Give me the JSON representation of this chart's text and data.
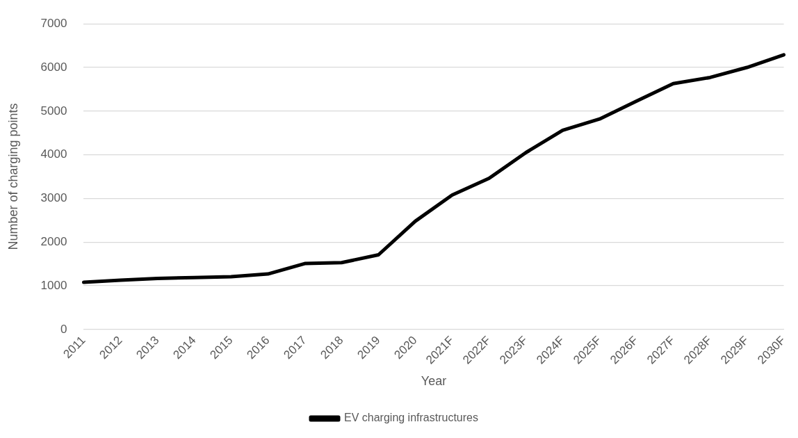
{
  "chart_data": {
    "type": "line",
    "xlabel": "Year",
    "ylabel": "Number of charging points",
    "categories": [
      "2011",
      "2012",
      "2013",
      "2014",
      "2015",
      "2016",
      "2017",
      "2018",
      "2019",
      "2020",
      "2021F",
      "2022F",
      "2023F",
      "2024F",
      "2025F",
      "2026F",
      "2027F",
      "2028F",
      "2029F",
      "2030F"
    ],
    "series": [
      {
        "name": "EV charging infrastructures",
        "color": "#000000",
        "values": [
          1080,
          1130,
          1170,
          1190,
          1210,
          1270,
          1510,
          1530,
          1710,
          2480,
          3080,
          3460,
          4050,
          4560,
          4820,
          5230,
          5630,
          5770,
          6000,
          6290
        ]
      }
    ],
    "ylim": [
      0,
      7000
    ],
    "yticks": [
      0,
      1000,
      2000,
      3000,
      4000,
      5000,
      6000,
      7000
    ],
    "grid": "y",
    "legend": "bottom",
    "marker": "none",
    "line_style": "solid"
  }
}
